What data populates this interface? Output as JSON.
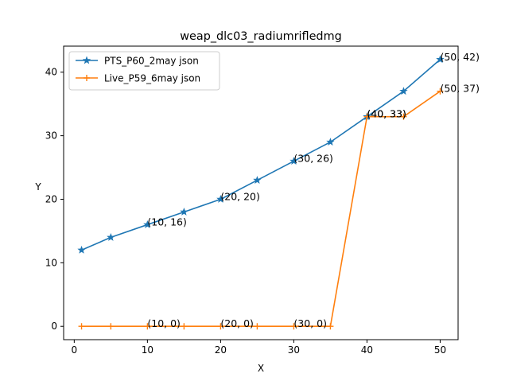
{
  "chart_data": {
    "type": "line",
    "title": "weap_dlc03_radiumrifledmg",
    "xlabel": "X",
    "ylabel": "Y",
    "xlim": [
      -1.45,
      52.45
    ],
    "ylim": [
      -2.1,
      44.1
    ],
    "xticks": [
      0,
      10,
      20,
      30,
      40,
      50
    ],
    "yticks": [
      0,
      10,
      20,
      30,
      40
    ],
    "grid": false,
    "legend": "top-left",
    "series": [
      {
        "name": "PTS_P60_2may json",
        "color": "#1f77b4",
        "marker": "star",
        "x": [
          1,
          5,
          10,
          15,
          20,
          25,
          30,
          35,
          40,
          45,
          50
        ],
        "y": [
          12,
          14,
          16,
          18,
          20,
          23,
          26,
          29,
          33,
          37,
          42
        ]
      },
      {
        "name": "Live_P59_6may json",
        "color": "#ff7f0e",
        "marker": "plus",
        "x": [
          1,
          5,
          10,
          15,
          20,
          25,
          30,
          35,
          40,
          45,
          50
        ],
        "y": [
          0,
          0,
          0,
          0,
          0,
          0,
          0,
          0,
          33,
          33,
          37
        ]
      }
    ],
    "annotations": [
      {
        "x": 10,
        "y": 16,
        "text": "(10, 16)"
      },
      {
        "x": 20,
        "y": 20,
        "text": "(20, 20)"
      },
      {
        "x": 30,
        "y": 26,
        "text": "(30, 26)"
      },
      {
        "x": 40,
        "y": 33,
        "text": "(40, 33)"
      },
      {
        "x": 50,
        "y": 42,
        "text": "(50, 42)"
      },
      {
        "x": 10,
        "y": 0,
        "text": "(10, 0)"
      },
      {
        "x": 20,
        "y": 0,
        "text": "(20, 0)"
      },
      {
        "x": 30,
        "y": 0,
        "text": "(30, 0)"
      },
      {
        "x": 40,
        "y": 33,
        "text": "(40, 33)"
      },
      {
        "x": 50,
        "y": 37,
        "text": "(50, 37)"
      }
    ]
  }
}
